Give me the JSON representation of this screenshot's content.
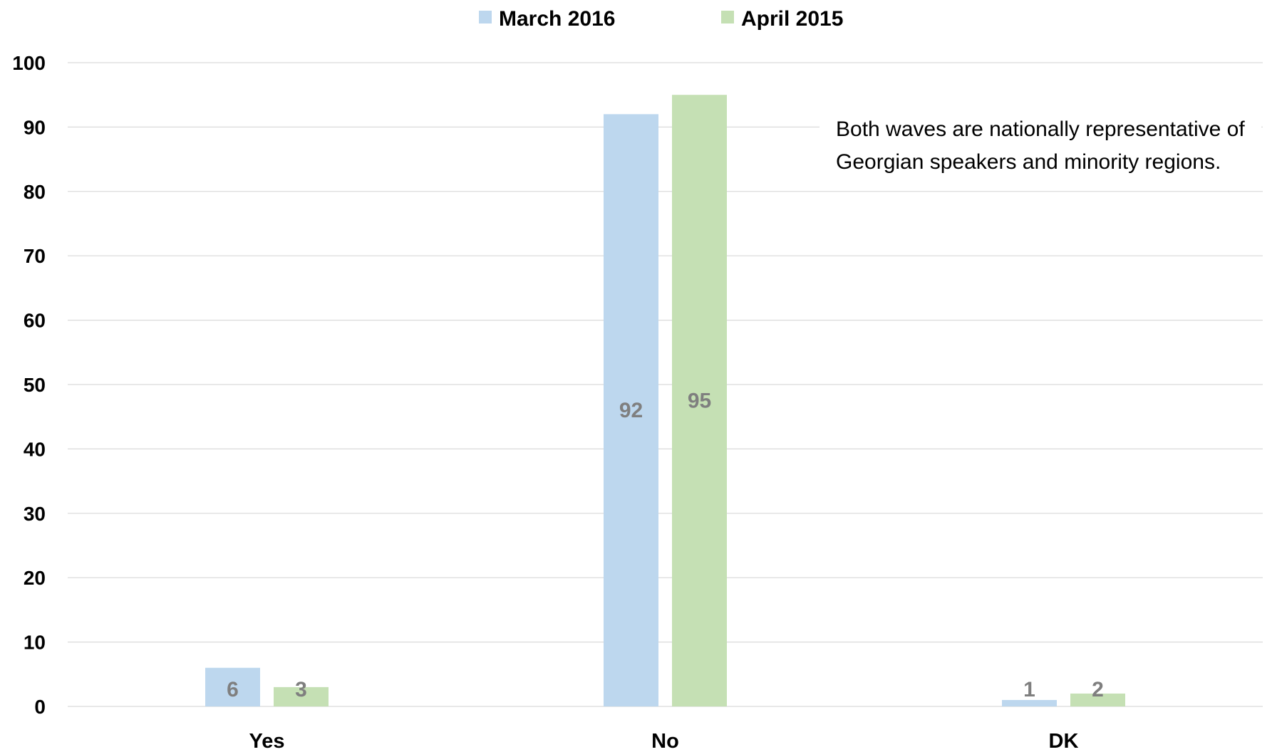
{
  "chart_data": {
    "type": "bar",
    "categories": [
      "Yes",
      "No",
      "DK"
    ],
    "series": [
      {
        "name": "March 2016",
        "color": "#bdd7ee",
        "values": [
          6,
          92,
          1
        ]
      },
      {
        "name": "April 2015",
        "color": "#c5e0b4",
        "values": [
          3,
          95,
          2
        ]
      }
    ],
    "ylim": [
      0,
      100
    ],
    "yticks": [
      0,
      10,
      20,
      30,
      40,
      50,
      60,
      70,
      80,
      90,
      100
    ],
    "grid": true,
    "legend_position": "top-center",
    "annotation": {
      "lines": [
        "Both waves are nationally representative of",
        "Georgian speakers and minority regions."
      ]
    }
  }
}
